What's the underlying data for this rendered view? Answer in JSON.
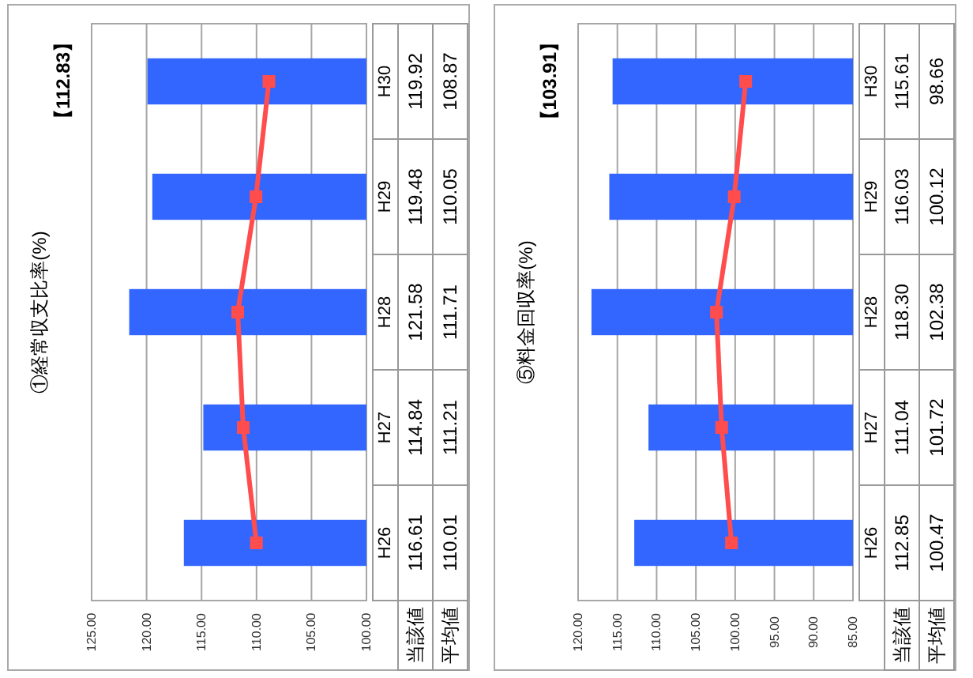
{
  "chart_data": [
    {
      "type": "bar",
      "orientation": "horizontal",
      "title": "①経常収支比率(%)",
      "annotations": [
        "【112.83】"
      ],
      "categories": [
        "H30",
        "H29",
        "H28",
        "H27",
        "H26"
      ],
      "series": [
        {
          "name": "当該値",
          "color": "#3366ff",
          "values": [
            119.92,
            119.48,
            121.58,
            114.84,
            116.61
          ],
          "value_labels": [
            "119.92",
            "119.48",
            "121.58",
            "114.84",
            "116.61"
          ]
        },
        {
          "name": "平均値",
          "type": "line",
          "color": "#ff4d4d",
          "values": [
            108.87,
            110.05,
            111.71,
            111.21,
            110.01
          ],
          "value_labels": [
            "108.87",
            "110.05",
            "111.71",
            "111.21",
            "110.01"
          ]
        }
      ],
      "marker": "square",
      "grid": "x",
      "xlim": [
        125,
        100
      ],
      "xticks": [
        {
          "value": 125,
          "label": "125.00"
        },
        {
          "value": 120,
          "label": "120.00"
        },
        {
          "value": 115,
          "label": "115.00"
        },
        {
          "value": 110,
          "label": "110.00"
        },
        {
          "value": 105,
          "label": "105.00"
        },
        {
          "value": 100,
          "label": "100.00"
        }
      ]
    },
    {
      "type": "bar",
      "orientation": "horizontal",
      "title": "⑤料金回収率(%)",
      "annotations": [
        "【103.91】"
      ],
      "categories": [
        "H30",
        "H29",
        "H28",
        "H27",
        "H26"
      ],
      "series": [
        {
          "name": "当該値",
          "color": "#3366ff",
          "values": [
            115.61,
            116.03,
            118.3,
            111.04,
            112.85
          ],
          "value_labels": [
            "115.61",
            "116.03",
            "118.30",
            "111.04",
            "112.85"
          ]
        },
        {
          "name": "平均値",
          "type": "line",
          "color": "#ff4d4d",
          "values": [
            98.66,
            100.12,
            102.38,
            101.72,
            100.47
          ],
          "value_labels": [
            "98.66",
            "100.12",
            "102.38",
            "101.72",
            "100.47"
          ]
        }
      ],
      "marker": "square",
      "grid": "x",
      "xlim": [
        120,
        85
      ],
      "xticks": [
        {
          "value": 120,
          "label": "120.00"
        },
        {
          "value": 115,
          "label": "115.00"
        },
        {
          "value": 110,
          "label": "110.00"
        },
        {
          "value": 105,
          "label": "105.00"
        },
        {
          "value": 100,
          "label": "100.00"
        },
        {
          "value": 95,
          "label": "95.00"
        },
        {
          "value": 90,
          "label": "90.00"
        },
        {
          "value": 85,
          "label": "85.00"
        }
      ]
    }
  ]
}
